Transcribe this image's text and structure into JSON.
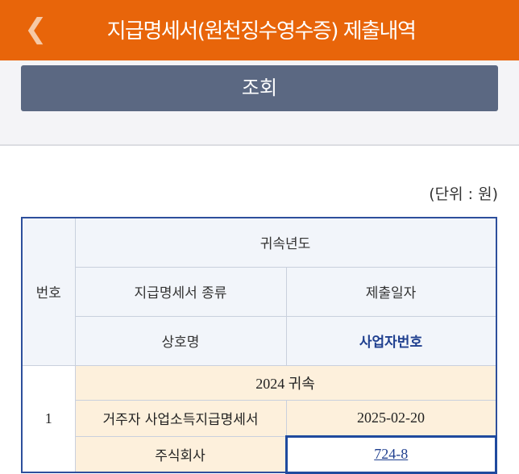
{
  "header": {
    "title": "지급명세서(원천징수영수증) 제출내역",
    "back_icon": "chevron-left-icon"
  },
  "search_button": "조회",
  "unit_label": "(단위 : 원)",
  "table": {
    "headers": {
      "no": "번호",
      "year": "귀속년도",
      "type": "지급명세서 종류",
      "date": "제출일자",
      "company": "상호명",
      "bizno": "사업자번호"
    },
    "rows": [
      {
        "no": "1",
        "year": "2024 귀속",
        "type": "거주자 사업소득지급명세서",
        "date": "2025-02-20",
        "company": "주식회사",
        "bizno": "724-8"
      }
    ]
  },
  "colors": {
    "header": "#e8650a",
    "button": "#5b6882",
    "table_border": "#2d4f9c",
    "row_bg": "#fdf0dc"
  }
}
